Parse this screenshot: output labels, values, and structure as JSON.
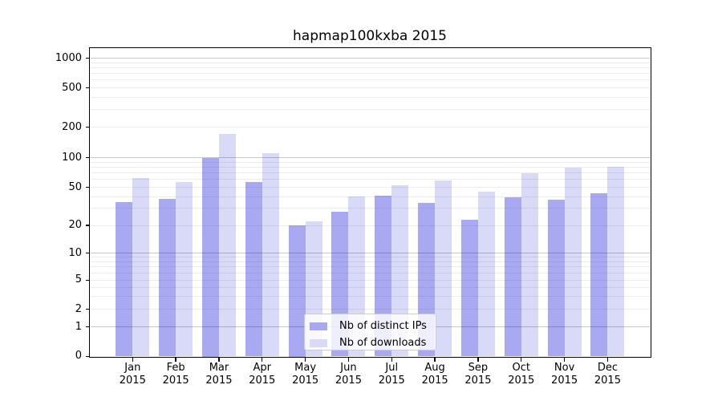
{
  "title": "hapmap100kxba 2015",
  "chart_data": {
    "type": "bar",
    "title": "hapmap100kxba 2015",
    "categories": [
      "Jan",
      "Feb",
      "Mar",
      "Apr",
      "May",
      "Jun",
      "Jul",
      "Aug",
      "Sep",
      "Oct",
      "Nov",
      "Dec"
    ],
    "x_year": "2015",
    "series": [
      {
        "name": "Nb of distinct IPs",
        "color": "#a9a9f2",
        "values": [
          35,
          38,
          100,
          57,
          20,
          28,
          41,
          34,
          23,
          39,
          37,
          43
        ]
      },
      {
        "name": "Nb of downloads",
        "color": "#d9d9f8",
        "values": [
          62,
          56,
          170,
          110,
          22,
          40,
          52,
          59,
          45,
          70,
          79,
          81
        ]
      }
    ],
    "xlabel": "",
    "ylabel": "",
    "yscale": "symlog",
    "ylim": [
      0,
      1260
    ],
    "y_ticks": [
      0,
      1,
      2,
      5,
      10,
      20,
      50,
      100,
      200,
      500,
      1000
    ],
    "y_tick_labels": [
      "0",
      "1",
      "2",
      "5",
      "10",
      "20",
      "50",
      "100",
      "200",
      "500",
      "1000"
    ],
    "y_gridlines_major": [
      1,
      10,
      100,
      1000
    ],
    "y_gridlines_minor": [
      2,
      3,
      4,
      5,
      6,
      7,
      8,
      9,
      20,
      30,
      40,
      50,
      60,
      70,
      80,
      90,
      200,
      300,
      400,
      500,
      600,
      700,
      800,
      900
    ],
    "grid": true,
    "legend_position": "lower-center-inside",
    "legend_items": [
      "Nb of distinct IPs",
      "Nb of downloads"
    ]
  },
  "colors": {
    "series_distinct_ips": "#a9a9f2",
    "series_downloads": "#d9d9f8",
    "grid_major": "#c7c7c7",
    "grid_minor": "#ededed",
    "spine": "#000000",
    "background": "#ffffff",
    "legend_border": "#cccccc"
  }
}
